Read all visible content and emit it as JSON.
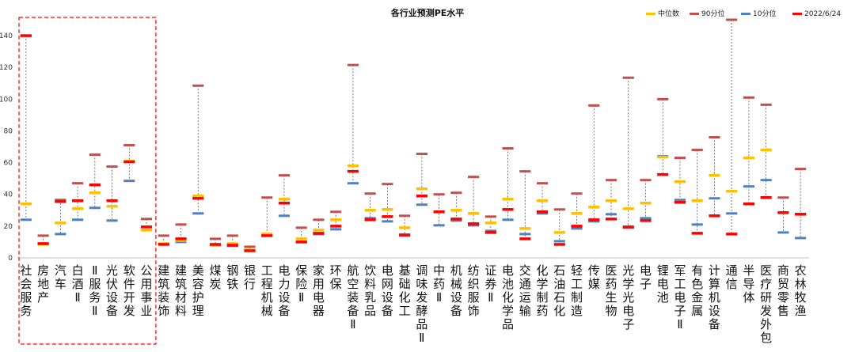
{
  "chart_data": {
    "type": "range-marker",
    "title": "各行业预测PE水平",
    "xlabel": "",
    "ylabel": "",
    "ylim": [
      0,
      150
    ],
    "yticks": [
      0,
      20,
      40,
      60,
      80,
      100,
      120,
      140
    ],
    "grid": false,
    "legend_position": "top-right",
    "legend": [
      {
        "key": "median",
        "label": "中位数",
        "color": "#FFC000"
      },
      {
        "key": "p90",
        "label": "90分位",
        "color": "#C0504D"
      },
      {
        "key": "p10",
        "label": "10分位",
        "color": "#4F81BD"
      },
      {
        "key": "current",
        "label": "2022/6/24",
        "color": "#FF0000"
      }
    ],
    "highlight_region": {
      "from_index": 0,
      "to_index": 7,
      "style": "red-dashed-box"
    },
    "categories": [
      "社会服务",
      "房地产",
      "汽车",
      "白酒Ⅱ",
      "Ⅱ服务Ⅱ",
      "光伏设备",
      "软件开发",
      "公用事业",
      "建筑装饰",
      "建筑材料",
      "美容护理",
      "煤炭",
      "钢铁",
      "银行",
      "工程机械",
      "电力设备",
      "保险Ⅱ",
      "家用电器",
      "环保",
      "航空装备Ⅱ",
      "饮料乳品",
      "电网设备",
      "基础化工",
      "调味发酵品Ⅱ",
      "中药Ⅱ",
      "机械设备",
      "纺织服饰",
      "证券Ⅱ",
      "电池化学品",
      "交通运输",
      "化学制药",
      "石油石化",
      "轻工制造",
      "传媒",
      "医药生物",
      "光学光电子",
      "电子",
      "锂电池",
      "军工电子Ⅱ",
      "有色金属",
      "计算机设备",
      "通信",
      "半导体",
      "医疗研发外包",
      "商贸零售",
      "农林牧渔"
    ],
    "series": [
      {
        "key": "median",
        "name": "中位数",
        "values": [
          34,
          8.5,
          22,
          31,
          41,
          32.5,
          61,
          17.5,
          9,
          11,
          39,
          8,
          9,
          5,
          15,
          37,
          12,
          17.5,
          24,
          58,
          30,
          30.5,
          19,
          43.5,
          29,
          30,
          28,
          22,
          37,
          18.5,
          36,
          16,
          28,
          32,
          36,
          31,
          34.5,
          63.5,
          48,
          36,
          52,
          42,
          63,
          68,
          28.5,
          27.5
        ]
      },
      {
        "key": "p90",
        "name": "90分位",
        "values": [
          140,
          14,
          36.5,
          47,
          65,
          57.5,
          71,
          24.5,
          14,
          21,
          108.5,
          12,
          14,
          7,
          38,
          52,
          19,
          24,
          29,
          121.5,
          40.5,
          46.5,
          26.5,
          65.5,
          40,
          41,
          51,
          26,
          69,
          54.5,
          47,
          30.5,
          40.5,
          96,
          49,
          113.5,
          49,
          100,
          63,
          68,
          76,
          150,
          101,
          96.5,
          38,
          56
        ]
      },
      {
        "key": "p10",
        "name": "10分位",
        "values": [
          24,
          8.5,
          15,
          24,
          31.5,
          23.5,
          48.5,
          17.5,
          8.5,
          10,
          28,
          8,
          7.5,
          5,
          14,
          26.5,
          10,
          15,
          18,
          47,
          25,
          23,
          14,
          33.5,
          20.5,
          23.5,
          20.5,
          17,
          24,
          15,
          28,
          10.5,
          18.5,
          23,
          27.5,
          19,
          25,
          64,
          36.5,
          21,
          37.5,
          28,
          45,
          49,
          16,
          12.5
        ]
      },
      {
        "key": "current",
        "name": "2022/6/24",
        "values": [
          140,
          9,
          35.5,
          36,
          46,
          36,
          60.5,
          19.5,
          8.5,
          12,
          37.5,
          8.5,
          8,
          4.5,
          14,
          34.5,
          10,
          15.5,
          20,
          54.5,
          24,
          26,
          14.5,
          39,
          29,
          24.5,
          21.5,
          16,
          30.5,
          12,
          29,
          8.5,
          20,
          24,
          24.5,
          19.5,
          23.5,
          52.5,
          35,
          15.5,
          26.5,
          15,
          34,
          38,
          28.5,
          27.5
        ]
      }
    ]
  }
}
